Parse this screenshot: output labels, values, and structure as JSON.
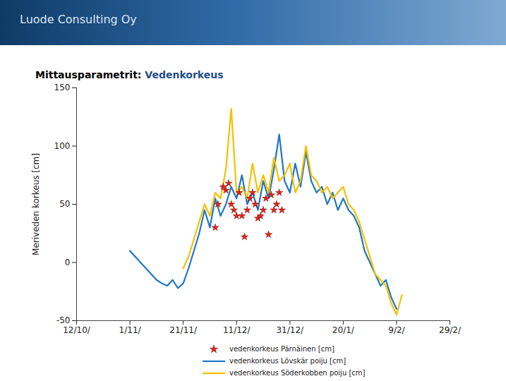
{
  "chart_data": {
    "type": "line",
    "header": "Luode Consulting Oy",
    "title": "Mittausparametrit: Vedenkorkeus",
    "y_label": "Meriveden korkeus [cm]",
    "xlim": [
      0,
      140
    ],
    "xticks": [
      {
        "value": 0,
        "label": "12/10/"
      },
      {
        "value": 20,
        "label": "1/11/"
      },
      {
        "value": 40,
        "label": "21/11/"
      },
      {
        "value": 60,
        "label": "11/12/"
      },
      {
        "value": 80,
        "label": "31/12/"
      },
      {
        "value": 100,
        "label": "20/1/"
      },
      {
        "value": 120,
        "label": "9/2/"
      },
      {
        "value": 140,
        "label": "29/2/"
      }
    ],
    "ylim": [
      -50,
      150
    ],
    "yticks": [
      -50,
      0,
      50,
      100,
      150
    ],
    "grid": false,
    "legend": "bottom",
    "series": [
      {
        "name": "vedenkorkeus Pärnäinen [cm]",
        "type": "scatter",
        "marker": "star",
        "color": "#e0241b",
        "x": [
          52,
          53,
          55,
          56,
          57,
          58,
          59,
          60,
          61,
          62,
          63,
          64,
          65,
          66,
          67,
          68,
          69,
          70,
          71,
          72,
          73,
          74,
          75,
          76,
          77
        ],
        "values": [
          30,
          50,
          65,
          62,
          68,
          50,
          45,
          40,
          60,
          40,
          22,
          45,
          55,
          60,
          50,
          38,
          40,
          45,
          55,
          24,
          58,
          45,
          50,
          60,
          45
        ]
      },
      {
        "name": "vedenkorkeus Lövskär poiju [cm]",
        "type": "line",
        "color": "#1f77c4",
        "x": [
          20,
          22,
          24,
          26,
          28,
          30,
          32,
          34,
          36,
          38,
          40,
          42,
          44,
          46,
          48,
          50,
          52,
          54,
          56,
          58,
          60,
          62,
          64,
          66,
          68,
          70,
          72,
          74,
          76,
          78,
          80,
          82,
          84,
          86,
          88,
          90,
          92,
          94,
          96,
          98,
          100,
          102,
          104,
          106,
          108,
          110,
          112,
          114,
          116,
          118,
          120
        ],
        "values": [
          10,
          5,
          0,
          -5,
          -10,
          -15,
          -18,
          -20,
          -15,
          -22,
          -18,
          -5,
          10,
          25,
          45,
          30,
          55,
          40,
          50,
          65,
          55,
          75,
          50,
          60,
          45,
          70,
          55,
          80,
          110,
          70,
          60,
          85,
          65,
          95,
          70,
          60,
          65,
          50,
          60,
          45,
          55,
          45,
          40,
          30,
          10,
          0,
          -10,
          -20,
          -15,
          -30,
          -40
        ]
      },
      {
        "name": "vedenkorkeus Söderkobben poiju [cm]",
        "type": "line",
        "color": "#f5c000",
        "x": [
          40,
          42,
          44,
          46,
          48,
          50,
          52,
          54,
          56,
          58,
          60,
          62,
          64,
          66,
          68,
          70,
          72,
          74,
          76,
          78,
          80,
          82,
          84,
          86,
          88,
          90,
          92,
          94,
          96,
          98,
          100,
          102,
          104,
          106,
          108,
          110,
          112,
          114,
          116,
          118,
          120,
          122
        ],
        "values": [
          -5,
          5,
          20,
          35,
          50,
          40,
          60,
          55,
          80,
          132,
          60,
          65,
          55,
          85,
          60,
          75,
          60,
          90,
          70,
          75,
          85,
          60,
          70,
          100,
          75,
          70,
          60,
          65,
          55,
          60,
          65,
          50,
          45,
          35,
          20,
          5,
          -10,
          -15,
          -20,
          -35,
          -45,
          -28
        ]
      }
    ]
  }
}
